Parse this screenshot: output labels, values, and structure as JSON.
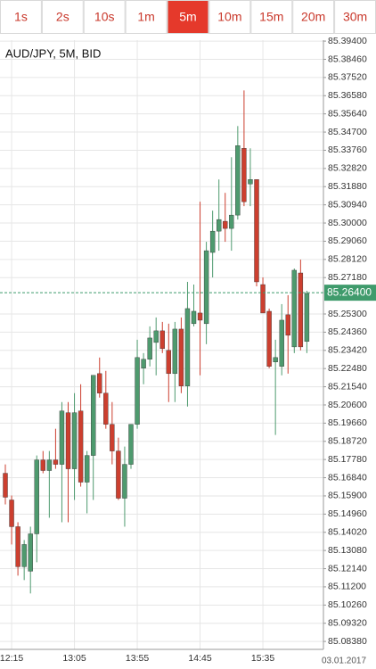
{
  "toolbar": {
    "buttons": [
      "1s",
      "2s",
      "10s",
      "1m",
      "5m",
      "10m",
      "15m",
      "20m",
      "30m"
    ],
    "selected": 4
  },
  "chart_data": {
    "type": "candlestick",
    "title": "AUD/JPY, 5M, BID",
    "date_label": "03.01.2017",
    "categories": [
      null,
      "12:15",
      null,
      null,
      null,
      null,
      null,
      null,
      null,
      null,
      null,
      "13:05",
      null,
      null,
      null,
      null,
      null,
      null,
      null,
      null,
      null,
      "13:55",
      null,
      null,
      null,
      null,
      null,
      null,
      null,
      null,
      null,
      "14:45",
      null,
      null,
      null,
      null,
      null,
      null,
      null,
      null,
      null,
      "15:35",
      null,
      null,
      null,
      null,
      null,
      null,
      null
    ],
    "open": [
      85.1707,
      85.1569,
      85.1431,
      85.1224,
      85.1201,
      85.1394,
      85.1776,
      85.1721,
      85.1776,
      85.1753,
      85.202,
      85.173,
      85.2029,
      85.1661,
      85.1799,
      85.2222,
      85.2121,
      85.196,
      85.1822,
      85.1578,
      85.1753,
      85.196,
      85.225,
      85.2296,
      85.2383,
      85.2443,
      85.2342,
      85.2222,
      85.2452,
      85.2158,
      85.248,
      85.2535,
      85.248,
      85.2848,
      85.2958,
      85.3009,
      85.2972,
      85.3041,
      85.3386,
      85.3202,
      85.3225,
      85.2682,
      85.2544,
      85.2282,
      85.2259,
      85.2526,
      85.236,
      85.2742,
      85.2388
    ],
    "high": [
      85.1753,
      85.1592,
      85.1454,
      85.1362,
      85.1431,
      85.1799,
      85.1822,
      85.1822,
      85.1937,
      85.2075,
      85.2075,
      85.2121,
      85.2167,
      85.1822,
      85.2213,
      85.2305,
      85.2236,
      85.2075,
      85.1891,
      85.1845,
      85.196,
      85.2397,
      85.2328,
      85.2466,
      85.2512,
      85.2489,
      85.248,
      85.2489,
      85.2512,
      85.2696,
      85.2682,
      85.311,
      85.2903,
      85.3064,
      85.3225,
      85.3156,
      85.334,
      85.3501,
      85.3685,
      85.3386,
      85.3225,
      85.2719,
      85.2558,
      85.2397,
      85.2581,
      85.2627,
      85.2765,
      85.2811,
      85.265
    ],
    "low": [
      85.1546,
      85.1339,
      85.1178,
      85.1155,
      85.1086,
      85.1247,
      85.1707,
      85.1477,
      85.173,
      85.1454,
      85.1454,
      85.1569,
      85.1638,
      85.15,
      85.1569,
      85.2098,
      85.1937,
      85.1753,
      85.1569,
      85.1431,
      85.173,
      85.1937,
      85.2167,
      85.2259,
      85.2213,
      85.2328,
      85.2075,
      85.2075,
      85.2121,
      85.2052,
      85.2466,
      85.2213,
      85.2374,
      85.2719,
      85.2857,
      85.2903,
      85.2857,
      85.3018,
      85.3087,
      85.3087,
      85.2673,
      85.2535,
      85.225,
      85.1905,
      85.2213,
      85.2222,
      85.2328,
      85.2342,
      85.2328
    ],
    "close": [
      85.1583,
      85.1431,
      85.1224,
      85.1339,
      85.1394,
      85.1776,
      85.1721,
      85.1776,
      85.1753,
      85.2029,
      85.173,
      85.202,
      85.1661,
      85.1799,
      85.2213,
      85.2121,
      85.196,
      85.1822,
      85.1578,
      85.1753,
      85.196,
      85.2305,
      85.2296,
      85.2406,
      85.2443,
      85.2351,
      85.2222,
      85.2452,
      85.2158,
      85.2558,
      85.2544,
      85.2498,
      85.2857,
      85.2958,
      85.3018,
      85.2972,
      85.3041,
      85.34,
      85.311,
      85.3225,
      85.2696,
      85.2535,
      85.2259,
      85.2305,
      85.2498,
      85.242,
      85.2756,
      85.236,
      85.2636
    ],
    "up_color": "#4e9a6e",
    "down_color": "#cc3f2f",
    "current_price": {
      "value": 85.264,
      "label": "85.26400"
    },
    "current_price_color": "#3f9b6c",
    "ylim": [
      85.0797,
      85.3945
    ],
    "yticks": [
      {
        "value": 85.0838,
        "label": "85.08380"
      },
      {
        "value": 85.0932,
        "label": "85.09320"
      },
      {
        "value": 85.1026,
        "label": "85.10260"
      },
      {
        "value": 85.112,
        "label": "85.11200"
      },
      {
        "value": 85.1214,
        "label": "85.12140"
      },
      {
        "value": 85.1308,
        "label": "85.13080"
      },
      {
        "value": 85.1402,
        "label": "85.14020"
      },
      {
        "value": 85.1496,
        "label": "85.14960"
      },
      {
        "value": 85.159,
        "label": "85.15900"
      },
      {
        "value": 85.1684,
        "label": "85.16840"
      },
      {
        "value": 85.1778,
        "label": "85.17780"
      },
      {
        "value": 85.1872,
        "label": "85.18720"
      },
      {
        "value": 85.1966,
        "label": "85.19660"
      },
      {
        "value": 85.206,
        "label": "85.20600"
      },
      {
        "value": 85.2154,
        "label": "85.21540"
      },
      {
        "value": 85.2248,
        "label": "85.22480"
      },
      {
        "value": 85.2342,
        "label": "85.23420"
      },
      {
        "value": 85.2436,
        "label": "85.24360"
      },
      {
        "value": 85.253,
        "label": "85.25300"
      },
      {
        "value": 85.2718,
        "label": "85.27180"
      },
      {
        "value": 85.2812,
        "label": "85.28120"
      },
      {
        "value": 85.2906,
        "label": "85.29060"
      },
      {
        "value": 85.3,
        "label": "85.30000"
      },
      {
        "value": 85.3094,
        "label": "85.30940"
      },
      {
        "value": 85.3188,
        "label": "85.31880"
      },
      {
        "value": 85.3282,
        "label": "85.32820"
      },
      {
        "value": 85.3376,
        "label": "85.33760"
      },
      {
        "value": 85.347,
        "label": "85.34700"
      },
      {
        "value": 85.3564,
        "label": "85.35640"
      },
      {
        "value": 85.3658,
        "label": "85.36580"
      },
      {
        "value": 85.3752,
        "label": "85.37520"
      },
      {
        "value": 85.3846,
        "label": "85.38460"
      },
      {
        "value": 85.394,
        "label": "85.39400"
      }
    ],
    "grid": true
  }
}
